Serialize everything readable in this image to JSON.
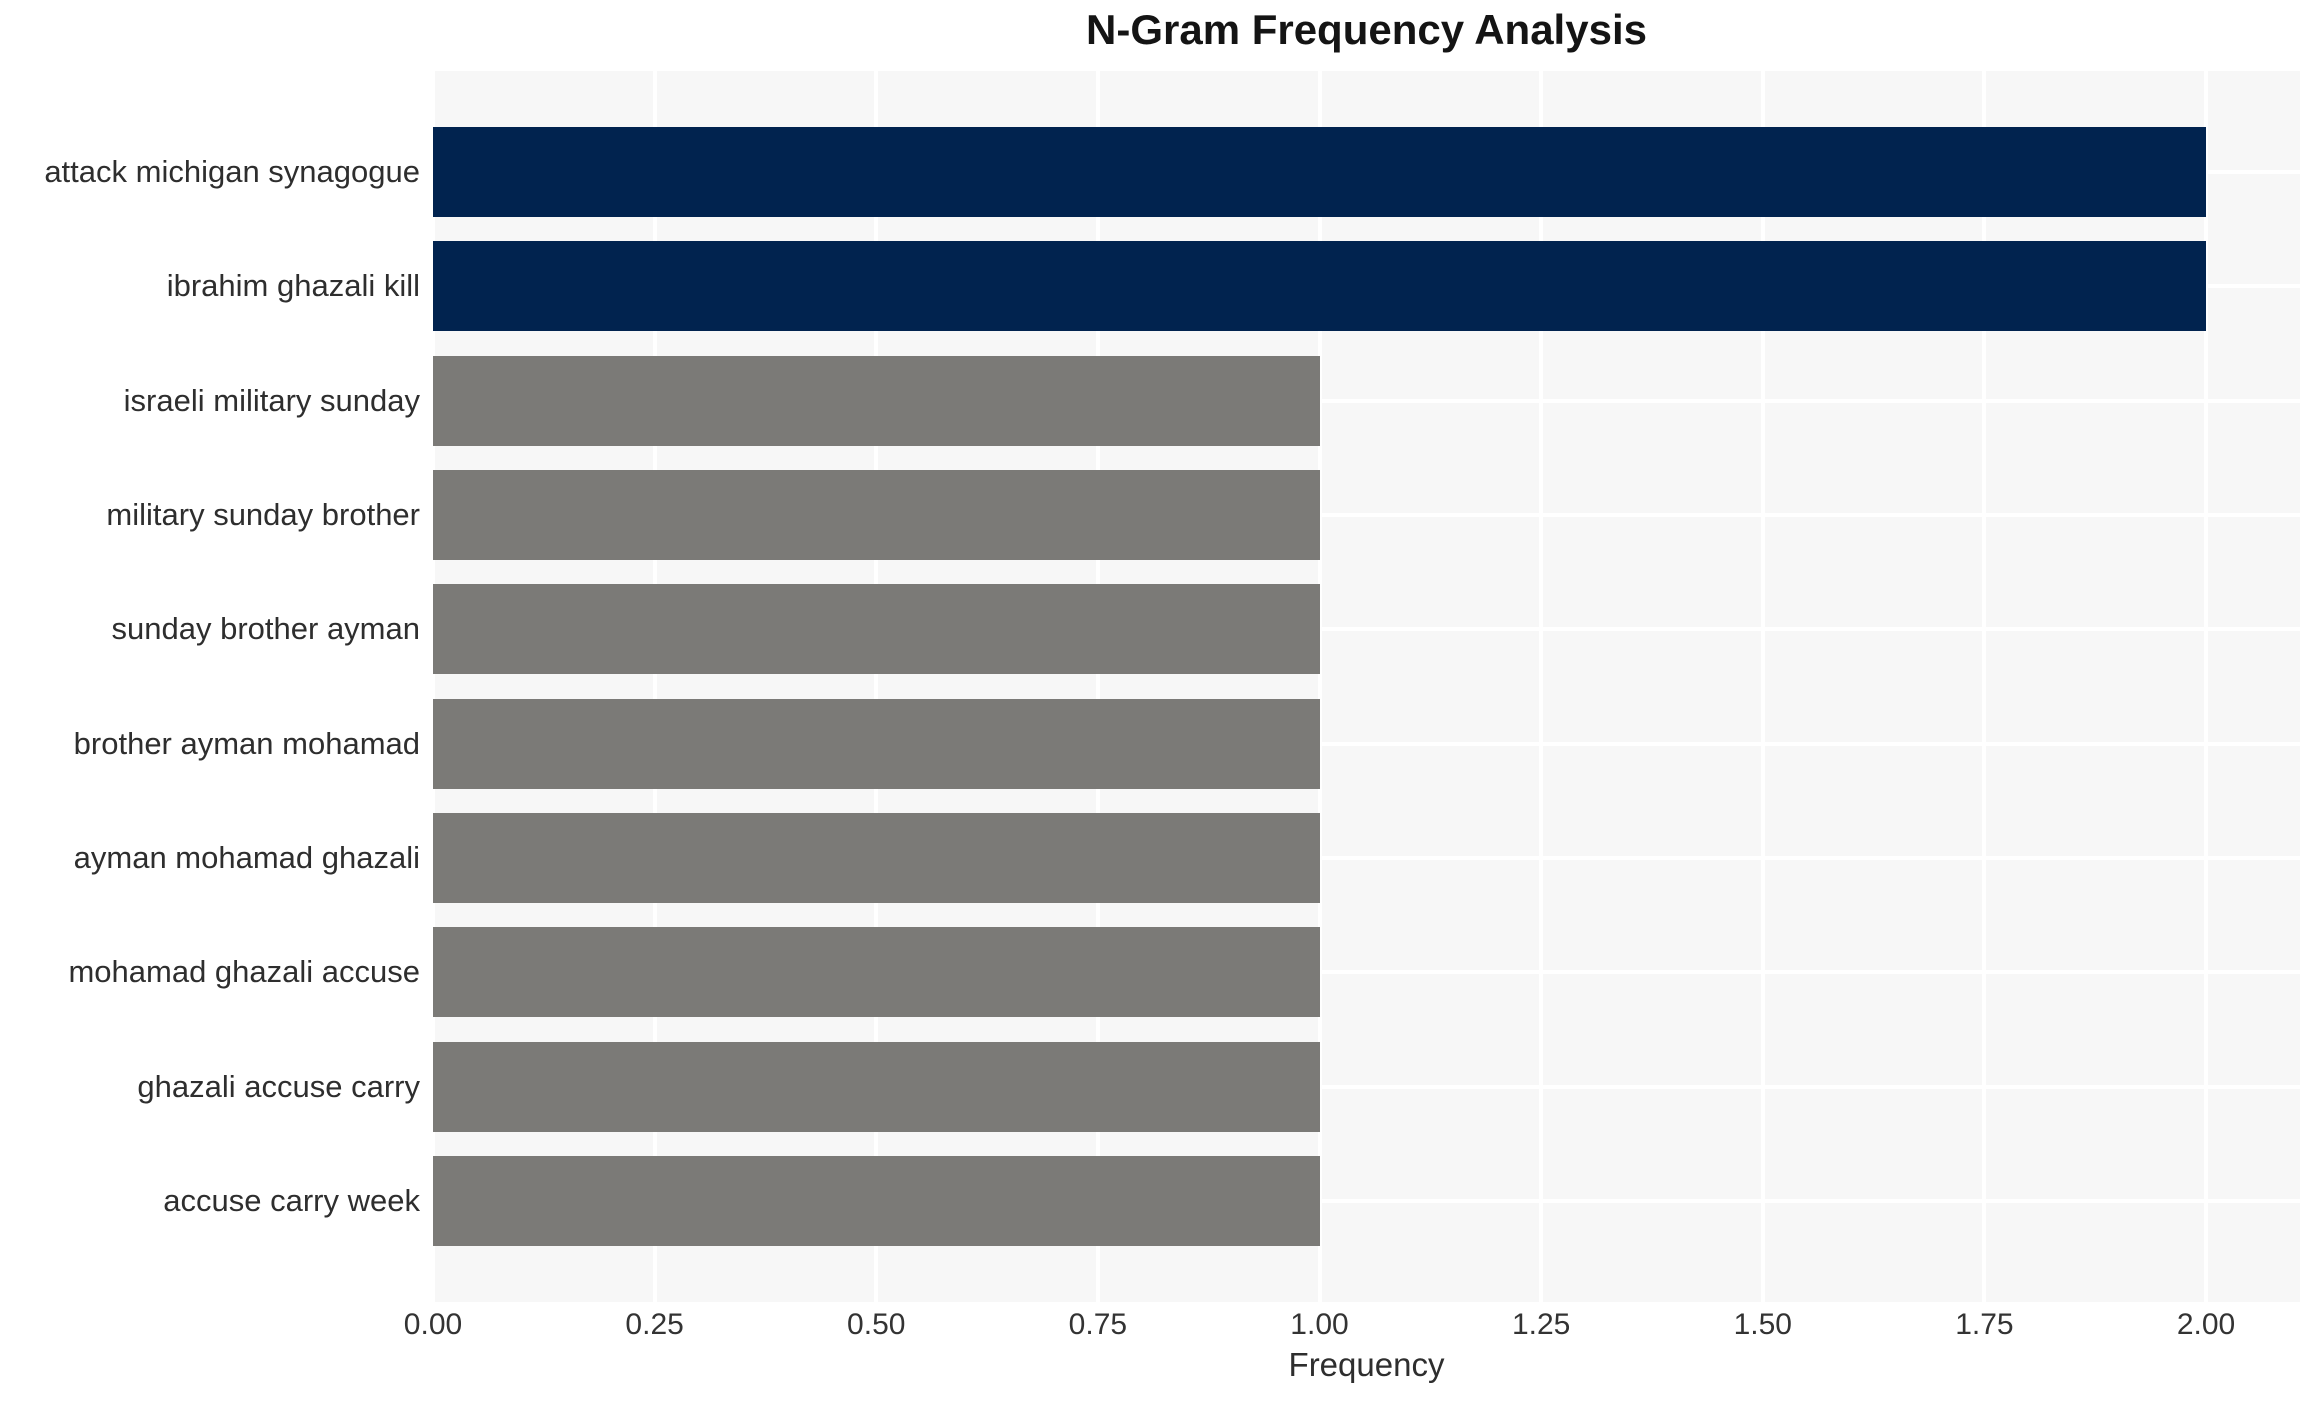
{
  "chart_data": {
    "type": "bar",
    "orientation": "horizontal",
    "title": "N-Gram Frequency Analysis",
    "xlabel": "Frequency",
    "ylabel": "",
    "categories": [
      "attack michigan synagogue",
      "ibrahim ghazali kill",
      "israeli military sunday",
      "military sunday brother",
      "sunday brother ayman",
      "brother ayman mohamad",
      "ayman mohamad ghazali",
      "mohamad ghazali accuse",
      "ghazali accuse carry",
      "accuse carry week"
    ],
    "values": [
      2,
      2,
      1,
      1,
      1,
      1,
      1,
      1,
      1,
      1
    ],
    "xlim": [
      0,
      2.106
    ],
    "xtick_values": [
      0,
      0.25,
      0.5,
      0.75,
      1,
      1.25,
      1.5,
      1.75,
      2
    ],
    "xtick_labels": [
      "0.00",
      "0.25",
      "0.50",
      "0.75",
      "1.00",
      "1.25",
      "1.50",
      "1.75",
      "2.00"
    ],
    "grid": true,
    "legend": "none",
    "colors": {
      "highlight_bar": "#01234f",
      "base_bar": "#7b7a77",
      "bar_colors": [
        "#01234f",
        "#01234f",
        "#7b7a77",
        "#7b7a77",
        "#7b7a77",
        "#7b7a77",
        "#7b7a77",
        "#7b7a77",
        "#7b7a77",
        "#7b7a77"
      ],
      "panel_background": "#f7f7f7",
      "gridline": "#ffffff",
      "title_text": "#141414",
      "label_text": "#2e2e2e",
      "tick_text": "#333333"
    }
  }
}
